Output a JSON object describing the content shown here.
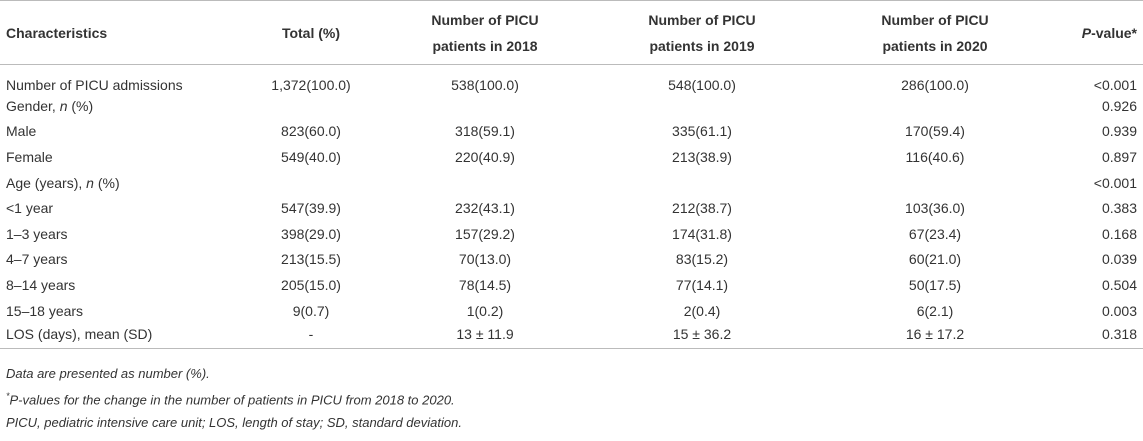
{
  "table": {
    "header": [
      "Characteristics",
      "Total (%)",
      "Number of PICU patients in 2018",
      "Number of PICU patients in 2019",
      "Number of PICU patients in 2020",
      [
        "P",
        "-value*"
      ]
    ],
    "rows": [
      [
        "Number of PICU admissions",
        "1,372(100.0)",
        "538(100.0)",
        "548(100.0)",
        "286(100.0)",
        "<0.001"
      ],
      [
        [
          "Gender, ",
          "n",
          " (%)"
        ],
        null,
        null,
        null,
        null,
        "0.926"
      ],
      [
        "Male",
        "823(60.0)",
        "318(59.1)",
        "335(61.1)",
        "170(59.4)",
        "0.939"
      ],
      [
        "Female",
        "549(40.0)",
        "220(40.9)",
        "213(38.9)",
        "116(40.6)",
        "0.897"
      ],
      [
        [
          "Age (years), ",
          "n",
          " (%)"
        ],
        null,
        null,
        null,
        null,
        "<0.001"
      ],
      [
        "<1 year",
        "547(39.9)",
        "232(43.1)",
        "212(38.7)",
        "103(36.0)",
        "0.383"
      ],
      [
        "1–3 years",
        "398(29.0)",
        "157(29.2)",
        "174(31.8)",
        "67(23.4)",
        "0.168"
      ],
      [
        "4–7 years",
        "213(15.5)",
        "70(13.0)",
        "83(15.2)",
        "60(21.0)",
        "0.039"
      ],
      [
        "8–14 years",
        "205(15.0)",
        "78(14.5)",
        "77(14.1)",
        "50(17.5)",
        "0.504"
      ],
      [
        "15–18 years",
        "9(0.7)",
        "1(0.2)",
        "2(0.4)",
        "6(2.1)",
        "0.003"
      ],
      [
        "LOS (days), mean (SD)",
        "-",
        "13 ± 11.9",
        "15 ± 36.2",
        "16 ± 17.2",
        "0.318"
      ]
    ]
  },
  "footnotes": [
    "Data are presented as number (%).",
    [
      "*",
      "P-values for the change in the number of patients in PICU from 2018 to 2020."
    ],
    "PICU, pediatric intensive care unit; LOS, length of stay; SD, standard deviation."
  ]
}
